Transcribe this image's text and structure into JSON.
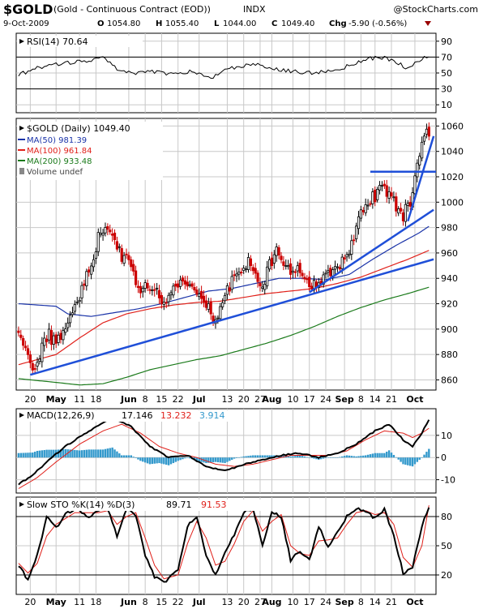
{
  "header": {
    "symbol": "$GOLD",
    "name": "(Gold - Continuous Contract (EOD))",
    "exchange": "INDX",
    "watermark": "@StockCharts.com",
    "date": "9-Oct-2009",
    "open_label": "O",
    "open": "1054.80",
    "high_label": "H",
    "high": "1055.40",
    "low_label": "L",
    "low": "1044.00",
    "close_label": "C",
    "close": "1049.40",
    "chg_label": "Chg",
    "chg": "-5.90 (-0.56%)"
  },
  "colors": {
    "candle_up": "#000000",
    "candle_down": "#cc0000",
    "ma50": "#1a33a8",
    "ma100": "#e0201a",
    "ma200": "#1a7a1a",
    "trendline": "#1f4fd8",
    "histogram": "#3399cc",
    "signal": "#e0201a"
  },
  "x_axis": {
    "ticks": [
      "20",
      "May",
      "11",
      "18",
      "Jun",
      "8",
      "15",
      "22",
      "Jul",
      "13",
      "20",
      "27",
      "Aug",
      "10",
      "17",
      "24",
      "Sep",
      "8",
      "14",
      "21",
      "Oct"
    ],
    "tick_days": [
      -11,
      0,
      10,
      17,
      31,
      38,
      45,
      52,
      61,
      73,
      80,
      87,
      92,
      101,
      108,
      115,
      123,
      130,
      136,
      143,
      153
    ],
    "bold": [
      "May",
      "Jun",
      "Jul",
      "Aug",
      "Sep",
      "Oct"
    ]
  },
  "panels": {
    "rsi": {
      "label": "RSI(14) 70.64",
      "ticks": [
        "90",
        "70",
        "50",
        "30",
        "10"
      ],
      "tick_values": [
        90,
        70,
        50,
        30,
        10
      ],
      "range": [
        0,
        100
      ],
      "ref_lines": [
        70,
        30
      ]
    },
    "price": {
      "label": "$GOLD (Daily) 1049.40",
      "legend": [
        {
          "text": "MA(50) 981.39",
          "color_key": "ma50"
        },
        {
          "text": "MA(100) 961.84",
          "color_key": "ma100"
        },
        {
          "text": "MA(200) 933.48",
          "color_key": "ma200"
        },
        {
          "text": "Volume undef",
          "color_key": "none"
        }
      ],
      "ticks": [
        "1060",
        "1040",
        "1020",
        "1000",
        "980",
        "960",
        "940",
        "920",
        "900",
        "880",
        "860"
      ],
      "tick_values": [
        1060,
        1040,
        1020,
        1000,
        980,
        960,
        940,
        920,
        900,
        880,
        860
      ],
      "range": [
        852,
        1066
      ]
    },
    "macd": {
      "label_prefix": "MACD(12,26,9)",
      "macd_value": "17.146",
      "signal_value": "13.232",
      "hist_value": "3.914",
      "ticks": [
        "10",
        "0",
        "-10"
      ],
      "tick_values": [
        10,
        0,
        -10
      ],
      "range": [
        -16,
        22
      ]
    },
    "sto": {
      "label_prefix": "Slow STO %K(14) %D(3)",
      "k_value": "89.71",
      "d_value": "91.53",
      "ticks": [
        "80",
        "50",
        "20"
      ],
      "tick_values": [
        80,
        50,
        20
      ],
      "range": [
        0,
        100
      ],
      "ref_lines": [
        80,
        20
      ]
    }
  },
  "chart_data": {
    "type": "candlestick",
    "title": "$GOLD (Daily) 1049.40",
    "x_unit": "trading day (May 1 2009 = 0)",
    "ylim": [
      852,
      1066
    ],
    "price_keypoints": [
      [
        -16,
        897
      ],
      [
        -12,
        878
      ],
      [
        -9,
        867
      ],
      [
        -6,
        885
      ],
      [
        -3,
        895
      ],
      [
        0,
        888
      ],
      [
        3,
        900
      ],
      [
        6,
        912
      ],
      [
        10,
        927
      ],
      [
        13,
        945
      ],
      [
        16,
        958
      ],
      [
        19,
        980
      ],
      [
        22,
        978
      ],
      [
        25,
        970
      ],
      [
        28,
        958
      ],
      [
        31,
        955
      ],
      [
        34,
        935
      ],
      [
        37,
        932
      ],
      [
        40,
        935
      ],
      [
        43,
        930
      ],
      [
        46,
        922
      ],
      [
        49,
        930
      ],
      [
        52,
        938
      ],
      [
        55,
        940
      ],
      [
        58,
        932
      ],
      [
        61,
        928
      ],
      [
        64,
        920
      ],
      [
        67,
        910
      ],
      [
        70,
        915
      ],
      [
        73,
        932
      ],
      [
        76,
        940
      ],
      [
        79,
        948
      ],
      [
        82,
        955
      ],
      [
        85,
        945
      ],
      [
        88,
        932
      ],
      [
        91,
        950
      ],
      [
        94,
        962
      ],
      [
        97,
        955
      ],
      [
        100,
        948
      ],
      [
        103,
        945
      ],
      [
        106,
        940
      ],
      [
        109,
        935
      ],
      [
        112,
        938
      ],
      [
        115,
        942
      ],
      [
        118,
        948
      ],
      [
        121,
        952
      ],
      [
        124,
        955
      ],
      [
        127,
        975
      ],
      [
        130,
        992
      ],
      [
        133,
        1000
      ],
      [
        136,
        1005
      ],
      [
        139,
        1012
      ],
      [
        142,
        1008
      ],
      [
        145,
        995
      ],
      [
        148,
        990
      ],
      [
        151,
        1000
      ],
      [
        154,
        1030
      ],
      [
        156,
        1048
      ],
      [
        158,
        1055
      ],
      [
        159,
        1049
      ]
    ],
    "ma_keypoints": {
      "ma50": [
        [
          -16,
          920
        ],
        [
          0,
          918
        ],
        [
          5,
          912
        ],
        [
          15,
          910
        ],
        [
          25,
          913
        ],
        [
          35,
          916
        ],
        [
          45,
          920
        ],
        [
          55,
          925
        ],
        [
          65,
          930
        ],
        [
          75,
          932
        ],
        [
          85,
          936
        ],
        [
          95,
          940
        ],
        [
          105,
          940
        ],
        [
          115,
          939
        ],
        [
          125,
          943
        ],
        [
          135,
          955
        ],
        [
          145,
          966
        ],
        [
          155,
          976
        ],
        [
          159,
          981
        ]
      ],
      "ma100": [
        [
          -16,
          872
        ],
        [
          0,
          880
        ],
        [
          10,
          893
        ],
        [
          20,
          905
        ],
        [
          30,
          912
        ],
        [
          40,
          916
        ],
        [
          50,
          919
        ],
        [
          60,
          921
        ],
        [
          70,
          922
        ],
        [
          80,
          925
        ],
        [
          90,
          928
        ],
        [
          100,
          930
        ],
        [
          110,
          932
        ],
        [
          120,
          936
        ],
        [
          130,
          941
        ],
        [
          140,
          948
        ],
        [
          150,
          955
        ],
        [
          159,
          962
        ]
      ],
      "ma200": [
        [
          -16,
          861
        ],
        [
          0,
          858
        ],
        [
          10,
          856
        ],
        [
          20,
          857
        ],
        [
          30,
          862
        ],
        [
          40,
          868
        ],
        [
          50,
          872
        ],
        [
          60,
          876
        ],
        [
          70,
          879
        ],
        [
          80,
          884
        ],
        [
          90,
          889
        ],
        [
          100,
          895
        ],
        [
          110,
          902
        ],
        [
          120,
          910
        ],
        [
          130,
          917
        ],
        [
          140,
          923
        ],
        [
          150,
          928
        ],
        [
          159,
          933
        ]
      ]
    },
    "trendlines": [
      [
        [
          -11,
          864
        ],
        [
          161,
          955
        ]
      ],
      [
        [
          108,
          929
        ],
        [
          161,
          994
        ]
      ],
      [
        [
          150,
          985
        ],
        [
          161,
          1052
        ]
      ],
      [
        [
          134,
          1024
        ],
        [
          162,
          1024
        ]
      ]
    ],
    "rsi_keypoints": [
      [
        -16,
        48
      ],
      [
        -6,
        58
      ],
      [
        4,
        62
      ],
      [
        14,
        66
      ],
      [
        20,
        70
      ],
      [
        26,
        55
      ],
      [
        32,
        50
      ],
      [
        40,
        52
      ],
      [
        50,
        48
      ],
      [
        58,
        52
      ],
      [
        66,
        44
      ],
      [
        74,
        56
      ],
      [
        84,
        62
      ],
      [
        92,
        56
      ],
      [
        100,
        52
      ],
      [
        110,
        50
      ],
      [
        118,
        53
      ],
      [
        126,
        60
      ],
      [
        134,
        68
      ],
      [
        140,
        70
      ],
      [
        146,
        62
      ],
      [
        150,
        56
      ],
      [
        155,
        66
      ],
      [
        159,
        71
      ]
    ],
    "macd_keypoints": [
      [
        -16,
        -12
      ],
      [
        -10,
        -8
      ],
      [
        -4,
        -2
      ],
      [
        4,
        5
      ],
      [
        14,
        12
      ],
      [
        24,
        18
      ],
      [
        32,
        14
      ],
      [
        40,
        5
      ],
      [
        48,
        0
      ],
      [
        56,
        1
      ],
      [
        64,
        -4
      ],
      [
        72,
        -6
      ],
      [
        80,
        -3
      ],
      [
        88,
        -1
      ],
      [
        96,
        1
      ],
      [
        104,
        2
      ],
      [
        112,
        0
      ],
      [
        120,
        2
      ],
      [
        128,
        6
      ],
      [
        136,
        12
      ],
      [
        142,
        15
      ],
      [
        148,
        8
      ],
      [
        152,
        5
      ],
      [
        156,
        11
      ],
      [
        159,
        17.1
      ]
    ],
    "signal_keypoints": [
      [
        -16,
        -14
      ],
      [
        -8,
        -9
      ],
      [
        0,
        -2
      ],
      [
        10,
        6
      ],
      [
        20,
        12
      ],
      [
        28,
        15
      ],
      [
        36,
        11
      ],
      [
        44,
        5
      ],
      [
        52,
        2
      ],
      [
        60,
        0
      ],
      [
        68,
        -3
      ],
      [
        76,
        -4
      ],
      [
        84,
        -3
      ],
      [
        92,
        -1
      ],
      [
        100,
        1
      ],
      [
        108,
        1
      ],
      [
        116,
        1
      ],
      [
        124,
        3
      ],
      [
        132,
        8
      ],
      [
        140,
        12
      ],
      [
        148,
        11
      ],
      [
        152,
        9
      ],
      [
        156,
        11
      ],
      [
        159,
        13.2
      ]
    ],
    "k_keypoints": [
      [
        -16,
        30
      ],
      [
        -12,
        15
      ],
      [
        -8,
        40
      ],
      [
        -4,
        80
      ],
      [
        0,
        68
      ],
      [
        4,
        82
      ],
      [
        8,
        88
      ],
      [
        14,
        80
      ],
      [
        18,
        86
      ],
      [
        22,
        88
      ],
      [
        26,
        60
      ],
      [
        30,
        88
      ],
      [
        34,
        82
      ],
      [
        38,
        40
      ],
      [
        42,
        18
      ],
      [
        46,
        12
      ],
      [
        52,
        25
      ],
      [
        56,
        70
      ],
      [
        60,
        80
      ],
      [
        64,
        40
      ],
      [
        68,
        20
      ],
      [
        72,
        42
      ],
      [
        76,
        62
      ],
      [
        80,
        85
      ],
      [
        84,
        88
      ],
      [
        88,
        50
      ],
      [
        92,
        85
      ],
      [
        96,
        80
      ],
      [
        100,
        35
      ],
      [
        104,
        45
      ],
      [
        108,
        35
      ],
      [
        112,
        70
      ],
      [
        116,
        48
      ],
      [
        120,
        65
      ],
      [
        124,
        80
      ],
      [
        128,
        88
      ],
      [
        132,
        85
      ],
      [
        136,
        78
      ],
      [
        140,
        88
      ],
      [
        144,
        60
      ],
      [
        148,
        22
      ],
      [
        152,
        28
      ],
      [
        156,
        70
      ],
      [
        159,
        89.7
      ]
    ],
    "d_keypoints": [
      [
        -16,
        32
      ],
      [
        -12,
        22
      ],
      [
        -8,
        32
      ],
      [
        -4,
        60
      ],
      [
        0,
        72
      ],
      [
        4,
        78
      ],
      [
        8,
        84
      ],
      [
        14,
        84
      ],
      [
        18,
        84
      ],
      [
        22,
        86
      ],
      [
        26,
        72
      ],
      [
        30,
        80
      ],
      [
        34,
        84
      ],
      [
        38,
        58
      ],
      [
        42,
        30
      ],
      [
        46,
        16
      ],
      [
        52,
        20
      ],
      [
        56,
        52
      ],
      [
        60,
        75
      ],
      [
        64,
        58
      ],
      [
        68,
        30
      ],
      [
        72,
        34
      ],
      [
        76,
        52
      ],
      [
        80,
        75
      ],
      [
        84,
        86
      ],
      [
        88,
        65
      ],
      [
        92,
        75
      ],
      [
        96,
        82
      ],
      [
        100,
        50
      ],
      [
        104,
        42
      ],
      [
        108,
        40
      ],
      [
        112,
        55
      ],
      [
        116,
        56
      ],
      [
        120,
        58
      ],
      [
        124,
        72
      ],
      [
        128,
        84
      ],
      [
        132,
        86
      ],
      [
        136,
        82
      ],
      [
        140,
        84
      ],
      [
        144,
        72
      ],
      [
        148,
        38
      ],
      [
        152,
        28
      ],
      [
        156,
        50
      ],
      [
        159,
        91.5
      ]
    ]
  }
}
